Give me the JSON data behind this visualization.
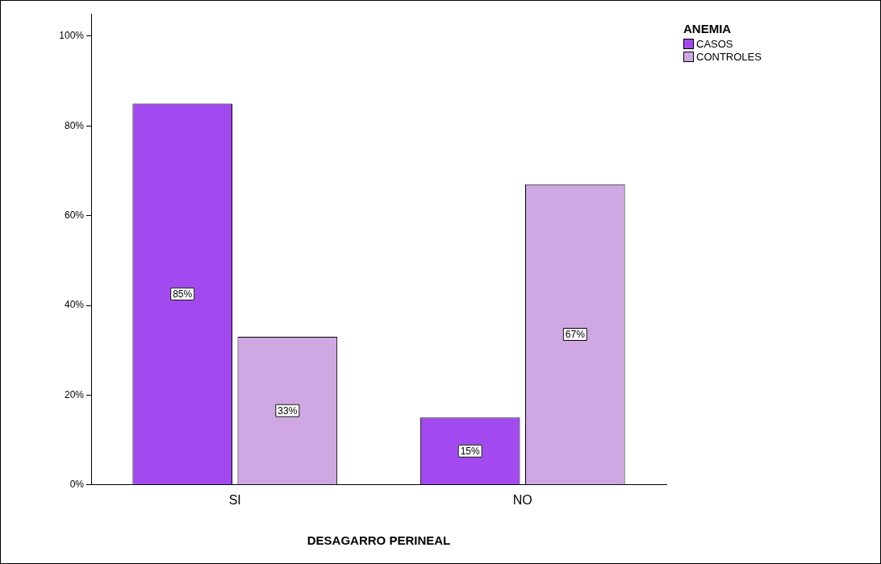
{
  "chart_data": {
    "type": "bar",
    "xlabel": "DESAGARRO PERINEAL",
    "legend_title": "ANEMIA",
    "categories": [
      "SI",
      "NO"
    ],
    "series": [
      {
        "name": "CASOS",
        "color": "#a349f0",
        "values": [
          85,
          15
        ],
        "value_labels": [
          "85%",
          "15%"
        ]
      },
      {
        "name": "CONTROLES",
        "color": "#cfa8e3",
        "values": [
          33,
          67
        ],
        "value_labels": [
          "33%",
          "67%"
        ]
      }
    ],
    "ylim": [
      0,
      105
    ],
    "yticks": [
      {
        "value": 0,
        "label": "0%"
      },
      {
        "value": 20,
        "label": "20%"
      },
      {
        "value": 40,
        "label": "40%"
      },
      {
        "value": 60,
        "label": "60%"
      },
      {
        "value": 80,
        "label": "80%"
      },
      {
        "value": 100,
        "label": "100%"
      }
    ],
    "grid": false,
    "legend": "top right"
  }
}
